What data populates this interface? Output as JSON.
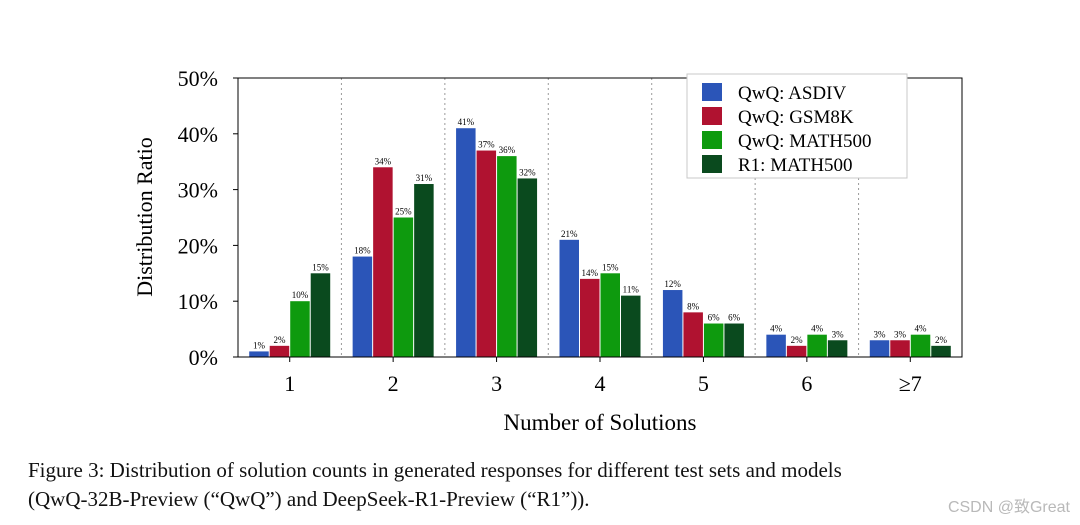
{
  "chart_data": {
    "type": "bar",
    "categories": [
      "1",
      "2",
      "3",
      "4",
      "5",
      "6",
      "≥7"
    ],
    "series": [
      {
        "name": "QwQ: ASDIV",
        "color": "#2b55b8",
        "values": [
          1,
          18,
          41,
          21,
          12,
          4,
          3
        ],
        "labels": [
          "1%",
          "18%",
          "41%",
          "21%",
          "12%",
          "4%",
          "3%"
        ]
      },
      {
        "name": "QwQ: GSM8K",
        "color": "#b01230",
        "values": [
          2,
          34,
          37,
          14,
          8,
          2,
          3
        ],
        "labels": [
          "2%",
          "34%",
          "37%",
          "14%",
          "8%",
          "2%",
          "3%"
        ]
      },
      {
        "name": "QwQ: MATH500",
        "color": "#0e9a0e",
        "values": [
          10,
          25,
          36,
          15,
          6,
          4,
          4
        ],
        "labels": [
          "10%",
          "25%",
          "36%",
          "15%",
          "6%",
          "4%",
          "4%"
        ]
      },
      {
        "name": "R1: MATH500",
        "color": "#0a4a1e",
        "values": [
          15,
          31,
          32,
          11,
          6,
          3,
          2
        ],
        "labels": [
          "15%",
          "31%",
          "32%",
          "11%",
          "6%",
          "3%",
          "2%"
        ]
      }
    ],
    "xlabel": "Number of Solutions",
    "ylabel": "Distribution Ratio",
    "ylim": [
      0,
      50
    ],
    "yticks": [
      "0%",
      "10%",
      "20%",
      "30%",
      "40%",
      "50%"
    ],
    "grid": "vertical dotted separators",
    "legend_position": "top-right"
  },
  "caption": {
    "line1": "Figure 3: Distribution of solution counts in generated responses for different test sets and models",
    "line2": "(QwQ-32B-Preview (“QwQ”) and DeepSeek-R1-Preview (“R1”))."
  },
  "watermark": "CSDN @致Great"
}
